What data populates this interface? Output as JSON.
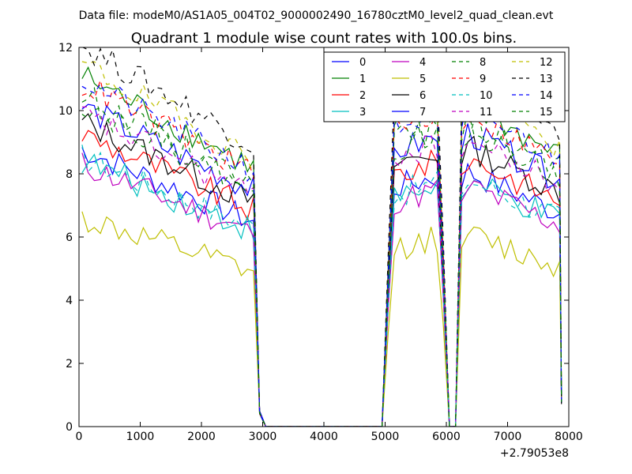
{
  "chart_data": {
    "type": "line",
    "suptitle": "Data file: modeM0/AS1A05_004T02_9000002490_16780cztM0_level2_quad_clean.evt",
    "title": "Quadrant 1 module wise count rates with 100.0s bins.",
    "xlabel": "",
    "ylabel": "",
    "x_offset_label": "+2.79053e8",
    "xlim": [
      0,
      8000
    ],
    "ylim": [
      0,
      12
    ],
    "xticks": [
      0,
      1000,
      2000,
      3000,
      4000,
      5000,
      6000,
      7000,
      8000
    ],
    "yticks": [
      0,
      2,
      4,
      6,
      8,
      10,
      12
    ],
    "xtick_labels": [
      "0",
      "1000",
      "2000",
      "3000",
      "4000",
      "5000",
      "6000",
      "7000",
      "8000"
    ],
    "ytick_labels": [
      "0",
      "2",
      "4",
      "6",
      "8",
      "10",
      "12"
    ],
    "legend_position": "upper-right",
    "legend_columns": 4,
    "grid": false,
    "segments": [
      {
        "x_start": 50,
        "x_end": 2850,
        "step": 100
      },
      {
        "x_end_drop": 2950,
        "drop_level": 0.4
      },
      {
        "zero_start": 3050,
        "zero_end": 4950
      },
      {
        "x_start": 5050,
        "x_end": 5850,
        "step": 100
      },
      {
        "x_end_drop": 6050,
        "drop_level": 0.3
      },
      {
        "x_start": 6250,
        "x_end": 7850,
        "step": 100
      }
    ],
    "series": [
      {
        "name": "0",
        "color": "#0000ff",
        "dash": "solid",
        "level": 7.2
      },
      {
        "name": "1",
        "color": "#008000",
        "dash": "solid",
        "level": 9.1
      },
      {
        "name": "2",
        "color": "#ff0000",
        "dash": "solid",
        "level": 7.6
      },
      {
        "name": "3",
        "color": "#00bfbf",
        "dash": "solid",
        "level": 6.9
      },
      {
        "name": "4",
        "color": "#bf00bf",
        "dash": "solid",
        "level": 6.8
      },
      {
        "name": "5",
        "color": "#bfbf00",
        "dash": "solid",
        "level": 5.4
      },
      {
        "name": "6",
        "color": "#000000",
        "dash": "solid",
        "level": 7.9
      },
      {
        "name": "7",
        "color": "#0000ff",
        "dash": "solid",
        "level": 8.3
      },
      {
        "name": "8",
        "color": "#008000",
        "dash": "dashed",
        "level": 8.6
      },
      {
        "name": "9",
        "color": "#ff0000",
        "dash": "dashed",
        "level": 8.9
      },
      {
        "name": "10",
        "color": "#00bfbf",
        "dash": "dashed",
        "level": 7.0
      },
      {
        "name": "11",
        "color": "#bf00bf",
        "dash": "dashed",
        "level": 8.1
      },
      {
        "name": "12",
        "color": "#bfbf00",
        "dash": "dashed",
        "level": 9.4
      },
      {
        "name": "13",
        "color": "#000000",
        "dash": "dashed",
        "level": 9.9
      },
      {
        "name": "14",
        "color": "#0000ff",
        "dash": "dashed",
        "level": 9.0
      },
      {
        "name": "15",
        "color": "#008000",
        "dash": "dashed",
        "level": 8.4
      }
    ]
  }
}
